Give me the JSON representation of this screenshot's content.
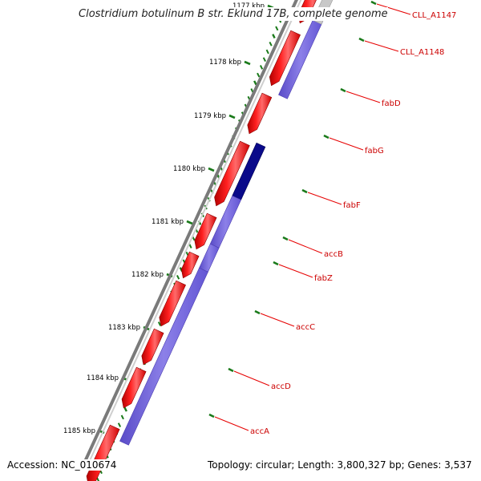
{
  "map": {
    "title": "Clostridium botulinum B str. Eklund 17B, complete genome",
    "accession_text": "Accession: NC_010674",
    "summary_text": "Topology: circular; Length: 3,800,327 bp; Genes: 3,537"
  },
  "ruler": {
    "labels": [
      "1177 kbp",
      "1178 kbp",
      "1179 kbp",
      "1180 kbp",
      "1181 kbp",
      "1182 kbp",
      "1183 kbp",
      "1184 kbp",
      "1185 kbp"
    ],
    "tick_color": "#1a7a1a"
  },
  "genes": [
    {
      "name": "CLL_A1147",
      "strand": "reverse"
    },
    {
      "name": "CLL_A1148",
      "strand": "reverse"
    },
    {
      "name": "fabD",
      "strand": "reverse"
    },
    {
      "name": "fabG",
      "strand": "forward"
    },
    {
      "name": "fabF",
      "strand": "forward"
    },
    {
      "name": "accB",
      "strand": "forward"
    },
    {
      "name": "fabZ",
      "strand": "forward"
    },
    {
      "name": "accC",
      "strand": "forward"
    },
    {
      "name": "accD",
      "strand": "forward"
    },
    {
      "name": "accA",
      "strand": "forward"
    }
  ],
  "colors": {
    "gene_forward": "#ff1a1a",
    "gene_forward_dark": "#c80000",
    "orf_track": "#7768dd",
    "orf_dark": "#0a0a8a",
    "backbone": "#7a7a7a",
    "label_line": "#e60000",
    "label_text": "#cc0000",
    "ruler_text": "#000000"
  }
}
